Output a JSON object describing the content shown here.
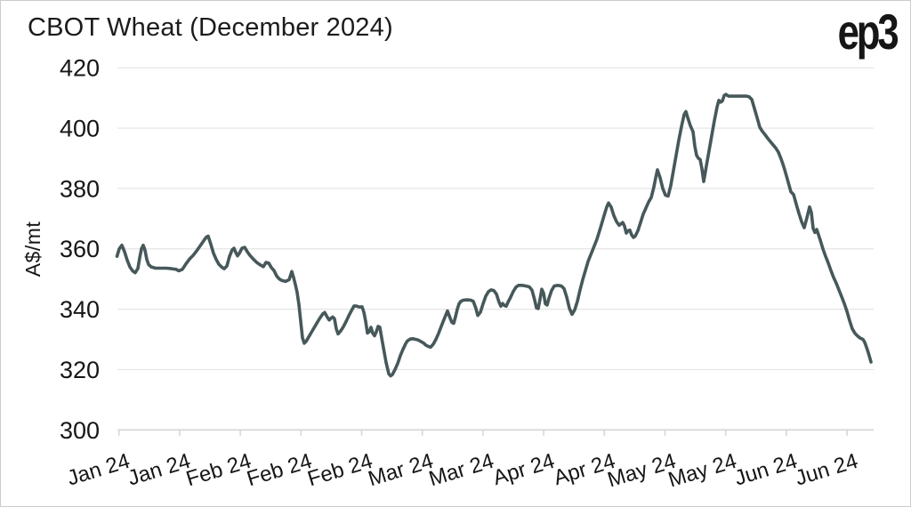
{
  "header": {
    "title": "CBOT Wheat (December 2024)",
    "logo_text": "ep3"
  },
  "colors": {
    "line": "#46585a",
    "grid": "#e4e4e4",
    "axis": "#d6d6d6",
    "text": "#161616",
    "background": "#ffffff",
    "border": "#cccccc"
  },
  "chart_data": {
    "type": "line",
    "title": "CBOT Wheat (December 2024)",
    "xlabel": "",
    "ylabel": "A$/mt",
    "ylim": [
      300,
      420
    ],
    "y_ticks": [
      300,
      320,
      340,
      360,
      380,
      400,
      420
    ],
    "x_tick_labels": [
      "Jan 24",
      "Jan 24",
      "Feb 24",
      "Feb 24",
      "Feb 24",
      "Mar 24",
      "Mar 24",
      "Apr 24",
      "Apr 24",
      "May 24",
      "May 24",
      "Jun 24",
      "Jun 24"
    ],
    "x_axis_note": "13 evenly spaced date ticks from early Jan 2024 to mid Jun 2024, labels rotated",
    "grid": "horizontal-only",
    "legend_position": "none",
    "line_color": "#46585a",
    "point_format": [
      "x_px_along_axis",
      "price_A$_per_mt"
    ],
    "series": [
      {
        "name": "CBOT Wheat (December 2024)",
        "unit": "A$/mt",
        "points": [
          [
            130.5,
            357.5
          ],
          [
            133,
            360
          ],
          [
            136,
            361.2
          ],
          [
            139,
            359
          ],
          [
            142,
            356.2
          ],
          [
            145,
            354
          ],
          [
            148,
            352.7
          ],
          [
            151,
            352.1
          ],
          [
            154,
            353.5
          ],
          [
            156,
            357
          ],
          [
            158,
            360
          ],
          [
            160,
            361.2
          ],
          [
            162,
            359.5
          ],
          [
            164,
            356.5
          ],
          [
            166,
            354.8
          ],
          [
            169,
            354
          ],
          [
            174,
            353.6
          ],
          [
            180,
            353.6
          ],
          [
            186,
            353.6
          ],
          [
            192,
            353.4
          ],
          [
            197,
            353.2
          ],
          [
            200,
            352.7
          ],
          [
            204,
            353.2
          ],
          [
            208,
            355
          ],
          [
            212,
            356.6
          ],
          [
            216,
            357.8
          ],
          [
            220,
            359.3
          ],
          [
            224,
            361
          ],
          [
            228,
            362.7
          ],
          [
            231,
            363.9
          ],
          [
            233,
            364.2
          ],
          [
            236,
            361.5
          ],
          [
            239,
            358.5
          ],
          [
            242,
            356.5
          ],
          [
            245,
            354.9
          ],
          [
            248,
            354
          ],
          [
            251,
            353.4
          ],
          [
            254,
            354.3
          ],
          [
            257,
            357.5
          ],
          [
            260,
            359.7
          ],
          [
            262,
            360.2
          ],
          [
            264,
            358.8
          ],
          [
            266,
            357.7
          ],
          [
            268,
            358.5
          ],
          [
            271,
            360.2
          ],
          [
            274,
            360.5
          ],
          [
            277,
            359
          ],
          [
            280,
            357.8
          ],
          [
            284,
            356.5
          ],
          [
            288,
            355.4
          ],
          [
            292,
            354.6
          ],
          [
            295,
            354.1
          ],
          [
            298,
            355.5
          ],
          [
            301,
            355.3
          ],
          [
            304,
            353.8
          ],
          [
            307,
            352.8
          ],
          [
            310,
            351
          ],
          [
            313,
            350
          ],
          [
            316,
            349.5
          ],
          [
            320,
            349.2
          ],
          [
            324,
            349.8
          ],
          [
            327,
            352.5
          ],
          [
            329,
            350.5
          ],
          [
            331,
            348.2
          ],
          [
            333,
            345.5
          ],
          [
            335,
            341.5
          ],
          [
            337,
            336
          ],
          [
            339,
            330.5
          ],
          [
            341,
            328.7
          ],
          [
            343,
            329.3
          ],
          [
            346,
            330.8
          ],
          [
            350,
            332.8
          ],
          [
            354,
            334.8
          ],
          [
            358,
            336.8
          ],
          [
            362,
            338.5
          ],
          [
            364,
            338.9
          ],
          [
            367,
            337.3
          ],
          [
            369,
            336.4
          ],
          [
            371,
            337
          ],
          [
            373,
            337.4
          ],
          [
            375,
            336.8
          ],
          [
            377,
            333.5
          ],
          [
            379,
            331.8
          ],
          [
            382,
            332.8
          ],
          [
            385,
            334.2
          ],
          [
            388,
            335.9
          ],
          [
            391,
            337.8
          ],
          [
            394,
            339.5
          ],
          [
            397,
            341.1
          ],
          [
            400,
            341
          ],
          [
            403,
            340.7
          ],
          [
            406,
            340.8
          ],
          [
            408,
            339
          ],
          [
            410,
            336
          ],
          [
            412,
            332.1
          ],
          [
            414,
            332.5
          ],
          [
            416,
            334
          ],
          [
            418,
            332
          ],
          [
            420,
            331.2
          ],
          [
            422,
            332.5
          ],
          [
            424,
            334.3
          ],
          [
            426,
            334
          ],
          [
            428,
            330.5
          ],
          [
            430,
            327.2
          ],
          [
            433,
            322.3
          ],
          [
            436,
            318.6
          ],
          [
            438,
            317.9
          ],
          [
            440,
            318.3
          ],
          [
            443,
            320
          ],
          [
            446,
            322
          ],
          [
            449,
            324.6
          ],
          [
            452,
            326.7
          ],
          [
            455,
            328.6
          ],
          [
            457,
            329.5
          ],
          [
            460,
            330.1
          ],
          [
            463,
            330.2
          ],
          [
            466,
            330
          ],
          [
            469,
            329.8
          ],
          [
            472,
            329.3
          ],
          [
            475,
            328.8
          ],
          [
            478,
            328
          ],
          [
            481,
            327.6
          ],
          [
            483,
            327.4
          ],
          [
            486,
            328.4
          ],
          [
            489,
            330
          ],
          [
            492,
            332
          ],
          [
            495,
            334.3
          ],
          [
            497,
            335.8
          ],
          [
            500,
            338
          ],
          [
            502,
            339.4
          ],
          [
            505,
            337
          ],
          [
            507,
            335.6
          ],
          [
            509,
            335.3
          ],
          [
            511,
            337.5
          ],
          [
            513,
            340
          ],
          [
            515,
            341.8
          ],
          [
            517,
            342.6
          ],
          [
            520,
            343
          ],
          [
            524,
            343.1
          ],
          [
            528,
            343
          ],
          [
            531,
            342.6
          ],
          [
            534,
            340.2
          ],
          [
            536,
            337.9
          ],
          [
            539,
            339
          ],
          [
            542,
            341.8
          ],
          [
            545,
            344.3
          ],
          [
            548,
            345.8
          ],
          [
            551,
            346.4
          ],
          [
            554,
            346.2
          ],
          [
            557,
            345
          ],
          [
            560,
            342.3
          ],
          [
            562,
            341
          ],
          [
            564,
            341.9
          ],
          [
            566,
            341.2
          ],
          [
            568,
            341
          ],
          [
            570,
            342.3
          ],
          [
            573,
            344
          ],
          [
            576,
            345.9
          ],
          [
            579,
            347.3
          ],
          [
            582,
            347.9
          ],
          [
            586,
            347.9
          ],
          [
            590,
            347.7
          ],
          [
            594,
            347.4
          ],
          [
            597,
            346.3
          ],
          [
            600,
            343
          ],
          [
            602,
            340.4
          ],
          [
            604,
            340.2
          ],
          [
            606,
            343.3
          ],
          [
            608,
            346.6
          ],
          [
            610,
            345.3
          ],
          [
            612,
            341.8
          ],
          [
            614,
            341.4
          ],
          [
            616,
            343.6
          ],
          [
            619,
            346.2
          ],
          [
            622,
            347.7
          ],
          [
            626,
            347.9
          ],
          [
            630,
            347.7
          ],
          [
            633,
            346.8
          ],
          [
            636,
            344
          ],
          [
            639,
            340.3
          ],
          [
            642,
            338.3
          ],
          [
            645,
            339.8
          ],
          [
            648,
            342.6
          ],
          [
            651,
            346.4
          ],
          [
            654,
            349.8
          ],
          [
            657,
            352.8
          ],
          [
            660,
            355.8
          ],
          [
            663,
            358
          ],
          [
            666,
            360.2
          ],
          [
            670,
            363.2
          ],
          [
            674,
            367
          ],
          [
            678,
            371
          ],
          [
            681,
            373.9
          ],
          [
            683,
            375.2
          ],
          [
            686,
            373.8
          ],
          [
            689,
            371
          ],
          [
            692,
            369
          ],
          [
            695,
            367.8
          ],
          [
            697,
            368.3
          ],
          [
            699,
            368.7
          ],
          [
            701,
            367.5
          ],
          [
            703,
            365.2
          ],
          [
            705,
            366
          ],
          [
            707,
            366.2
          ],
          [
            709,
            364.6
          ],
          [
            711,
            363.8
          ],
          [
            713,
            364.2
          ],
          [
            716,
            366
          ],
          [
            719,
            368.7
          ],
          [
            722,
            371.5
          ],
          [
            725,
            373.5
          ],
          [
            728,
            375.5
          ],
          [
            731,
            377
          ],
          [
            734,
            380.5
          ],
          [
            736,
            383.5
          ],
          [
            738,
            386.2
          ],
          [
            741,
            383.5
          ],
          [
            744,
            380
          ],
          [
            747,
            377.8
          ],
          [
            750,
            377.5
          ],
          [
            753,
            381
          ],
          [
            756,
            386
          ],
          [
            759,
            391
          ],
          [
            762,
            396
          ],
          [
            765,
            400.5
          ],
          [
            768,
            404.5
          ],
          [
            770,
            405.5
          ],
          [
            772,
            403.5
          ],
          [
            775,
            400.8
          ],
          [
            778,
            398.8
          ],
          [
            780,
            394
          ],
          [
            782,
            391
          ],
          [
            784,
            390
          ],
          [
            786,
            389.6
          ],
          [
            788,
            386.5
          ],
          [
            790,
            382.3
          ],
          [
            793,
            387.5
          ],
          [
            796,
            392.5
          ],
          [
            799,
            397.5
          ],
          [
            802,
            402.5
          ],
          [
            805,
            407
          ],
          [
            807,
            409.2
          ],
          [
            809,
            408.6
          ],
          [
            811,
            409
          ],
          [
            813,
            410.8
          ],
          [
            815,
            411.2
          ],
          [
            818,
            410.6
          ],
          [
            823,
            410.6
          ],
          [
            828,
            410.6
          ],
          [
            833,
            410.6
          ],
          [
            838,
            410.6
          ],
          [
            841,
            410.4
          ],
          [
            844,
            409.5
          ],
          [
            847,
            406.5
          ],
          [
            850,
            403.5
          ],
          [
            853,
            400.3
          ],
          [
            856,
            398.9
          ],
          [
            859,
            397.8
          ],
          [
            863,
            396.2
          ],
          [
            867,
            394.8
          ],
          [
            871,
            393.4
          ],
          [
            874,
            392
          ],
          [
            877,
            389.8
          ],
          [
            880,
            387.2
          ],
          [
            883,
            384.2
          ],
          [
            886,
            381
          ],
          [
            888,
            378.9
          ],
          [
            891,
            378
          ],
          [
            894,
            374.8
          ],
          [
            897,
            371.8
          ],
          [
            900,
            369
          ],
          [
            903,
            367
          ],
          [
            906,
            370.3
          ],
          [
            909,
            373.9
          ],
          [
            911,
            372
          ],
          [
            913,
            366.8
          ],
          [
            915,
            365.4
          ],
          [
            917,
            366.4
          ],
          [
            919,
            364.7
          ],
          [
            921,
            362.9
          ],
          [
            924,
            360
          ],
          [
            927,
            357.5
          ],
          [
            930,
            355.3
          ],
          [
            933,
            352.8
          ],
          [
            936,
            350.5
          ],
          [
            939,
            348.6
          ],
          [
            942,
            346.4
          ],
          [
            945,
            344.2
          ],
          [
            948,
            341.9
          ],
          [
            951,
            339.3
          ],
          [
            954,
            336.2
          ],
          [
            957,
            333.5
          ],
          [
            960,
            332
          ],
          [
            963,
            331.1
          ],
          [
            966,
            330.4
          ],
          [
            969,
            330
          ],
          [
            971,
            329
          ],
          [
            974,
            326.5
          ],
          [
            976,
            324.6
          ],
          [
            978,
            322.5
          ]
        ]
      }
    ]
  }
}
